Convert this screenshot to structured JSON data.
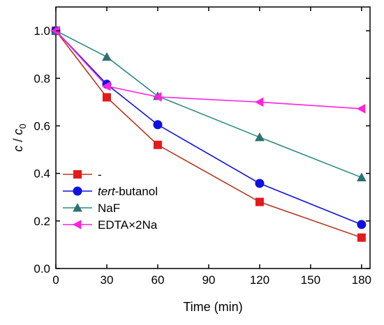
{
  "chart_data": {
    "type": "line",
    "x": [
      0,
      30,
      60,
      120,
      180
    ],
    "xlabel": "Time (min)",
    "ylabel": {
      "base": "c",
      "sep": " / ",
      "sub_base": "c",
      "sub": "0"
    },
    "xlim": [
      0,
      185
    ],
    "ylim": [
      0,
      1.1
    ],
    "xticks": [
      0,
      30,
      60,
      90,
      120,
      150,
      180
    ],
    "xtick_labels": [
      "0",
      "30",
      "60",
      "90",
      "120",
      "150",
      "180"
    ],
    "yticks": [
      0.0,
      0.2,
      0.4,
      0.6,
      0.8,
      1.0
    ],
    "ytick_labels": [
      "0.0",
      "0.2",
      "0.4",
      "0.6",
      "0.8",
      "1.0"
    ],
    "grid": false,
    "legend_position": "lower-left",
    "series": [
      {
        "name": "-",
        "values": [
          1.0,
          0.72,
          0.52,
          0.28,
          0.13
        ],
        "line_color": "#B5381E",
        "marker_color": "#E41A1C",
        "marker": "square"
      },
      {
        "name": "tert-butanol",
        "name_italic": "tert",
        "name_rest": "-butanol",
        "values": [
          1.0,
          0.775,
          0.605,
          0.358,
          0.185
        ],
        "line_color": "#1010E0",
        "marker_color": "#1010E0",
        "marker": "circle"
      },
      {
        "name": "NaF",
        "values": [
          1.0,
          0.89,
          0.725,
          0.552,
          0.383
        ],
        "line_color": "#2A8A80",
        "marker_color": "#2F7070",
        "marker": "triangle-up"
      },
      {
        "name": "EDTA×2Na",
        "values": [
          1.0,
          0.767,
          0.722,
          0.7,
          0.672
        ],
        "line_color": "#FF22E0",
        "marker_color": "#FF22E0",
        "marker": "triangle-left"
      }
    ]
  }
}
